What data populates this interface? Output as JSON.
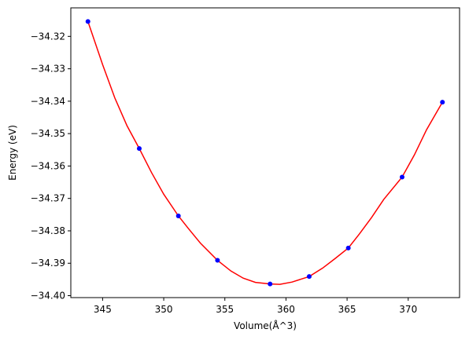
{
  "chart_data": {
    "type": "scatter",
    "title": "",
    "xlabel": "Volume(Å^3)",
    "ylabel": "Energy (eV)",
    "xlim": [
      342.4,
      374.2
    ],
    "ylim": [
      -34.4006,
      -34.3112
    ],
    "xticks": [
      345,
      350,
      355,
      360,
      365,
      370
    ],
    "yticks": [
      -34.32,
      -34.33,
      -34.34,
      -34.35,
      -34.36,
      -34.37,
      -34.38,
      -34.39,
      -34.4
    ],
    "xtick_labels": [
      "345",
      "350",
      "355",
      "360",
      "365",
      "370"
    ],
    "ytick_labels": [
      "−34.32",
      "−34.33",
      "−34.34",
      "−34.35",
      "−34.36",
      "−34.37",
      "−34.38",
      "−34.39",
      "−34.40"
    ],
    "grid": false,
    "series": [
      {
        "kind": "points",
        "color": "#0000ff",
        "x": [
          343.8,
          348.0,
          351.2,
          354.4,
          358.7,
          361.9,
          365.1,
          369.5,
          372.8
        ],
        "y": [
          -34.3154,
          -34.3546,
          -34.3754,
          -34.3891,
          -34.3964,
          -34.3941,
          -34.3853,
          -34.3634,
          -34.3403
        ]
      },
      {
        "kind": "fit-curve",
        "color": "#ff0000",
        "x": [
          343.8,
          345.0,
          346.0,
          347.0,
          348.0,
          349.0,
          350.0,
          351.2,
          352.0,
          353.0,
          354.4,
          355.5,
          356.5,
          357.5,
          358.7,
          359.5,
          360.5,
          361.9,
          363.0,
          364.0,
          365.1,
          366.0,
          367.0,
          368.0,
          369.5,
          370.5,
          371.5,
          372.8
        ],
        "y": [
          -34.3154,
          -34.3287,
          -34.339,
          -34.3476,
          -34.3546,
          -34.362,
          -34.3687,
          -34.3754,
          -34.3792,
          -34.3838,
          -34.3891,
          -34.3924,
          -34.3946,
          -34.3959,
          -34.3964,
          -34.3965,
          -34.3958,
          -34.3941,
          -34.3915,
          -34.3886,
          -34.3853,
          -34.381,
          -34.3759,
          -34.3703,
          -34.3634,
          -34.3566,
          -34.3488,
          -34.3403
        ]
      }
    ]
  }
}
